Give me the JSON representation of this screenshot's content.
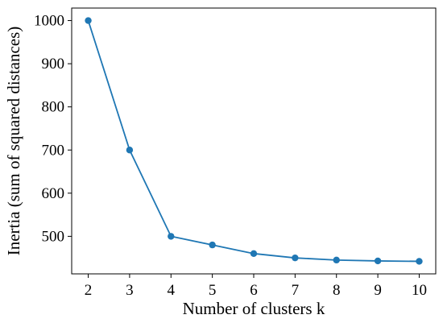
{
  "chart_data": {
    "type": "line",
    "title": "",
    "xlabel": "Number of clusters k",
    "ylabel": "Inertia (sum of squared distances)",
    "x": [
      2,
      3,
      4,
      5,
      6,
      7,
      8,
      9,
      10
    ],
    "series": [
      {
        "values": [
          1000,
          700,
          500,
          480,
          460,
          450,
          445,
          443,
          442
        ]
      }
    ],
    "xticks": [
      2,
      3,
      4,
      5,
      6,
      7,
      8,
      9,
      10
    ],
    "yticks": [
      500,
      600,
      700,
      800,
      900,
      1000
    ],
    "xlim": [
      1.6,
      10.4
    ],
    "ylim": [
      413,
      1029
    ],
    "grid": false,
    "colors": {
      "series": "#1f77b4",
      "axis": "#000000"
    }
  }
}
